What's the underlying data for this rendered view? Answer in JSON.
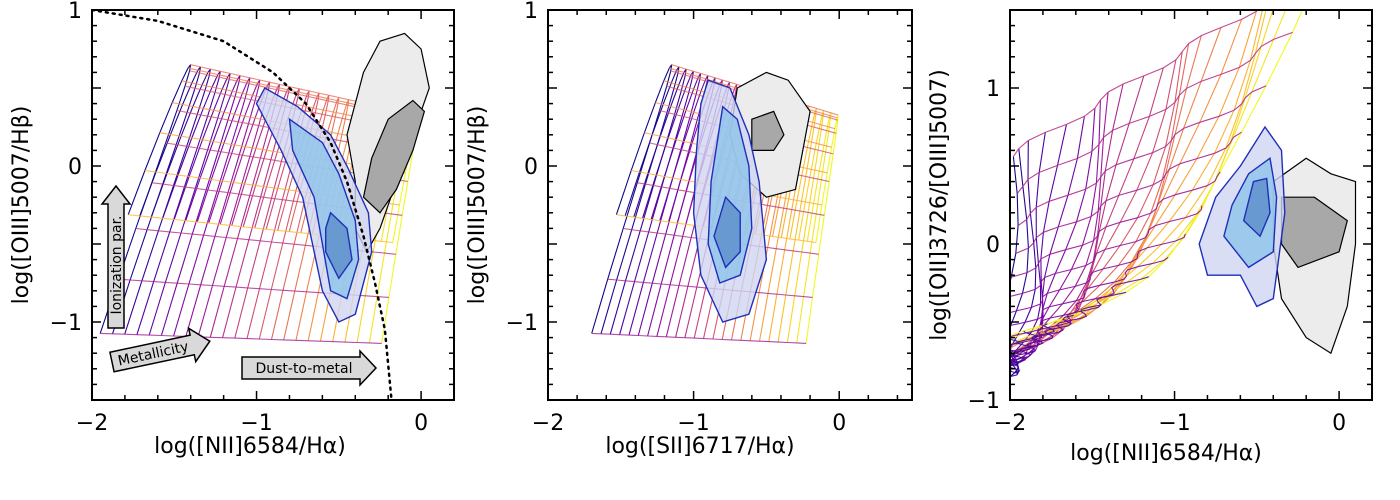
{
  "chart_data": [
    {
      "type": "line",
      "panel": "left",
      "xlabel": "log([NII]6584/Hα)",
      "ylabel": "log([OIII]5007/Hβ)",
      "xlim": [
        -2.0,
        0.2
      ],
      "ylim": [
        -1.5,
        1.0
      ],
      "xticks": [
        {
          "v": -2,
          "label": "−2"
        },
        {
          "v": -1,
          "label": "−1"
        },
        {
          "v": 0,
          "label": "0"
        }
      ],
      "yticks": [
        {
          "v": -1,
          "label": "−1"
        },
        {
          "v": 0,
          "label": "0"
        },
        {
          "v": 1,
          "label": "1"
        }
      ],
      "demarcation_curve": {
        "style": "dotted",
        "color": "#000000",
        "points": [
          [
            -2.0,
            1.0
          ],
          [
            -1.6,
            0.93
          ],
          [
            -1.2,
            0.8
          ],
          [
            -0.9,
            0.6
          ],
          [
            -0.7,
            0.4
          ],
          [
            -0.55,
            0.15
          ],
          [
            -0.45,
            -0.1
          ],
          [
            -0.35,
            -0.45
          ],
          [
            -0.28,
            -0.75
          ],
          [
            -0.22,
            -1.05
          ],
          [
            -0.18,
            -1.5
          ]
        ]
      },
      "model_grid": {
        "colormap": "plasma",
        "x_range": [
          -2.0,
          -0.05
        ],
        "y_peak": 0.65,
        "y_bottom": -1.5
      },
      "contours_blue": [
        {
          "color": "#cfd6f2",
          "points": [
            [
              -0.95,
              0.5
            ],
            [
              -0.75,
              0.38
            ],
            [
              -0.55,
              0.2
            ],
            [
              -0.45,
              0.0
            ],
            [
              -0.32,
              -0.3
            ],
            [
              -0.3,
              -0.55
            ],
            [
              -0.4,
              -0.95
            ],
            [
              -0.5,
              -1.0
            ],
            [
              -0.6,
              -0.8
            ],
            [
              -0.66,
              -0.5
            ],
            [
              -0.72,
              -0.2
            ],
            [
              -0.85,
              0.1
            ],
            [
              -1.0,
              0.4
            ]
          ]
        },
        {
          "color": "#8dc3ea",
          "points": [
            [
              -0.8,
              0.3
            ],
            [
              -0.6,
              0.15
            ],
            [
              -0.5,
              -0.05
            ],
            [
              -0.4,
              -0.35
            ],
            [
              -0.38,
              -0.6
            ],
            [
              -0.45,
              -0.85
            ],
            [
              -0.55,
              -0.8
            ],
            [
              -0.6,
              -0.5
            ],
            [
              -0.65,
              -0.2
            ],
            [
              -0.78,
              0.1
            ]
          ]
        },
        {
          "color": "#5b8fcb",
          "points": [
            [
              -0.55,
              -0.3
            ],
            [
              -0.45,
              -0.4
            ],
            [
              -0.42,
              -0.6
            ],
            [
              -0.5,
              -0.72
            ],
            [
              -0.58,
              -0.55
            ],
            [
              -0.58,
              -0.4
            ]
          ]
        }
      ],
      "contours_grey": [
        {
          "color": "#ececec",
          "points": [
            [
              -0.35,
              0.6
            ],
            [
              -0.25,
              0.8
            ],
            [
              -0.1,
              0.85
            ],
            [
              0.0,
              0.75
            ],
            [
              0.05,
              0.5
            ],
            [
              -0.05,
              0.2
            ],
            [
              -0.15,
              -0.1
            ],
            [
              -0.25,
              -0.4
            ],
            [
              -0.33,
              -0.55
            ],
            [
              -0.4,
              -0.4
            ],
            [
              -0.4,
              -0.1
            ],
            [
              -0.45,
              0.2
            ]
          ]
        },
        {
          "color": "#a8a8a8",
          "points": [
            [
              -0.2,
              0.3
            ],
            [
              -0.05,
              0.42
            ],
            [
              0.02,
              0.35
            ],
            [
              -0.05,
              0.1
            ],
            [
              -0.15,
              -0.15
            ],
            [
              -0.25,
              -0.3
            ],
            [
              -0.35,
              -0.2
            ],
            [
              -0.3,
              0.05
            ]
          ]
        }
      ],
      "annotations": [
        {
          "text": "Ionization par.",
          "direction": "up"
        },
        {
          "text": "Metallicity",
          "direction": "right"
        },
        {
          "text": "Dust-to-metal",
          "direction": "right"
        }
      ]
    },
    {
      "type": "line",
      "panel": "middle",
      "xlabel": "log([SII]6717/Hα)",
      "ylabel": "log([OIII]5007/Hβ)",
      "xlim": [
        -2.0,
        0.5
      ],
      "ylim": [
        -1.5,
        1.0
      ],
      "xticks": [
        {
          "v": -2,
          "label": "−2"
        },
        {
          "v": -1,
          "label": "−1"
        },
        {
          "v": 0,
          "label": "0"
        }
      ],
      "yticks": [
        {
          "v": -1,
          "label": "−1"
        },
        {
          "v": 0,
          "label": "0"
        },
        {
          "v": 1,
          "label": "1"
        }
      ],
      "model_grid": {
        "colormap": "plasma",
        "x_range": [
          -1.75,
          -0.05
        ],
        "y_peak": 0.65,
        "y_bottom": -1.5
      },
      "contours_blue": [
        {
          "color": "#cfd6f2",
          "points": [
            [
              -0.9,
              0.55
            ],
            [
              -0.75,
              0.5
            ],
            [
              -0.62,
              0.2
            ],
            [
              -0.55,
              -0.1
            ],
            [
              -0.5,
              -0.6
            ],
            [
              -0.62,
              -0.95
            ],
            [
              -0.8,
              -1.0
            ],
            [
              -0.95,
              -0.7
            ],
            [
              -1.0,
              -0.3
            ],
            [
              -0.98,
              0.1
            ],
            [
              -0.95,
              0.4
            ]
          ]
        },
        {
          "color": "#8dc3ea",
          "points": [
            [
              -0.8,
              0.38
            ],
            [
              -0.7,
              0.3
            ],
            [
              -0.62,
              0.0
            ],
            [
              -0.6,
              -0.4
            ],
            [
              -0.68,
              -0.7
            ],
            [
              -0.82,
              -0.75
            ],
            [
              -0.9,
              -0.5
            ],
            [
              -0.88,
              -0.1
            ]
          ]
        },
        {
          "color": "#5b8fcb",
          "points": [
            [
              -0.78,
              -0.2
            ],
            [
              -0.68,
              -0.3
            ],
            [
              -0.68,
              -0.55
            ],
            [
              -0.78,
              -0.65
            ],
            [
              -0.86,
              -0.45
            ]
          ]
        }
      ],
      "contours_grey": [
        {
          "color": "#ececec",
          "points": [
            [
              -0.7,
              0.5
            ],
            [
              -0.5,
              0.6
            ],
            [
              -0.35,
              0.55
            ],
            [
              -0.2,
              0.35
            ],
            [
              -0.25,
              0.1
            ],
            [
              -0.3,
              -0.15
            ],
            [
              -0.5,
              -0.2
            ],
            [
              -0.68,
              -0.05
            ],
            [
              -0.75,
              0.2
            ]
          ]
        },
        {
          "color": "#a8a8a8",
          "points": [
            [
              -0.6,
              0.3
            ],
            [
              -0.45,
              0.35
            ],
            [
              -0.38,
              0.2
            ],
            [
              -0.45,
              0.1
            ],
            [
              -0.6,
              0.1
            ]
          ]
        }
      ]
    },
    {
      "type": "line",
      "panel": "right",
      "xlabel": "log([NII]6584/Hα)",
      "ylabel": "log([OII]3726/[OIII]5007)",
      "xlim": [
        -2.0,
        0.2
      ],
      "ylim": [
        -1.0,
        1.5
      ],
      "xticks": [
        {
          "v": -2,
          "label": "−2"
        },
        {
          "v": -1,
          "label": "−1"
        },
        {
          "v": 0,
          "label": "0"
        }
      ],
      "yticks": [
        {
          "v": -1,
          "label": "−1"
        },
        {
          "v": 0,
          "label": "0"
        },
        {
          "v": 1,
          "label": "1"
        }
      ],
      "model_grid": {
        "colormap": "plasma",
        "x_range": [
          -2.0,
          -0.05
        ],
        "y_bottom": -0.85,
        "y_top": 1.5
      },
      "contours_blue": [
        {
          "color": "#cfd6f2",
          "points": [
            [
              -0.6,
              0.5
            ],
            [
              -0.45,
              0.75
            ],
            [
              -0.35,
              0.6
            ],
            [
              -0.33,
              0.2
            ],
            [
              -0.4,
              -0.35
            ],
            [
              -0.5,
              -0.4
            ],
            [
              -0.6,
              -0.2
            ],
            [
              -0.8,
              -0.2
            ],
            [
              -0.85,
              0.0
            ],
            [
              -0.75,
              0.3
            ]
          ]
        },
        {
          "color": "#8dc3ea",
          "points": [
            [
              -0.55,
              0.45
            ],
            [
              -0.42,
              0.55
            ],
            [
              -0.38,
              0.3
            ],
            [
              -0.4,
              -0.05
            ],
            [
              -0.55,
              -0.15
            ],
            [
              -0.7,
              0.05
            ],
            [
              -0.65,
              0.25
            ]
          ]
        },
        {
          "color": "#5b8fcb",
          "points": [
            [
              -0.52,
              0.4
            ],
            [
              -0.44,
              0.42
            ],
            [
              -0.42,
              0.2
            ],
            [
              -0.48,
              0.05
            ],
            [
              -0.58,
              0.15
            ]
          ]
        }
      ],
      "contours_grey": [
        {
          "color": "#ececec",
          "points": [
            [
              -0.4,
              0.4
            ],
            [
              -0.2,
              0.55
            ],
            [
              -0.05,
              0.45
            ],
            [
              0.1,
              0.4
            ],
            [
              0.1,
              0.0
            ],
            [
              0.05,
              -0.4
            ],
            [
              -0.05,
              -0.7
            ],
            [
              -0.2,
              -0.6
            ],
            [
              -0.35,
              -0.35
            ],
            [
              -0.4,
              0.0
            ]
          ]
        },
        {
          "color": "#a8a8a8",
          "points": [
            [
              -0.35,
              0.3
            ],
            [
              -0.15,
              0.3
            ],
            [
              0.05,
              0.15
            ],
            [
              0.0,
              -0.05
            ],
            [
              -0.25,
              -0.15
            ],
            [
              -0.35,
              0.0
            ]
          ]
        }
      ]
    }
  ]
}
